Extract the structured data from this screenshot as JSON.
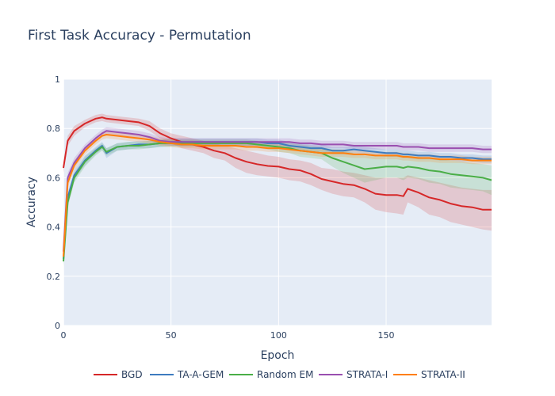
{
  "chart_data": {
    "type": "line",
    "title": "First Task Accuracy - Permutation",
    "xlabel": "Epoch",
    "ylabel": "Accuracy",
    "xlim": [
      0,
      199
    ],
    "ylim": [
      0,
      1
    ],
    "xticks": [
      0,
      50,
      100,
      150
    ],
    "yticks": [
      0,
      0.2,
      0.4,
      0.6,
      0.8,
      1
    ],
    "ytick_labels": [
      "0",
      "0.2",
      "0.4",
      "0.6",
      "0.8",
      "1"
    ],
    "grid": true,
    "legend_position": "bottom",
    "x": [
      0,
      2,
      5,
      10,
      15,
      18,
      20,
      25,
      30,
      35,
      40,
      45,
      50,
      55,
      60,
      65,
      70,
      75,
      80,
      85,
      90,
      95,
      100,
      105,
      110,
      115,
      120,
      125,
      130,
      135,
      140,
      145,
      150,
      155,
      158,
      160,
      165,
      170,
      175,
      180,
      185,
      190,
      195,
      199
    ],
    "series": [
      {
        "name": "BGD",
        "color": "#d62728",
        "values": [
          0.64,
          0.75,
          0.79,
          0.82,
          0.84,
          0.845,
          0.84,
          0.835,
          0.83,
          0.825,
          0.81,
          0.78,
          0.76,
          0.745,
          0.735,
          0.725,
          0.71,
          0.7,
          0.68,
          0.665,
          0.655,
          0.648,
          0.645,
          0.635,
          0.63,
          0.615,
          0.595,
          0.585,
          0.575,
          0.57,
          0.555,
          0.535,
          0.53,
          0.53,
          0.525,
          0.555,
          0.54,
          0.52,
          0.51,
          0.495,
          0.485,
          0.48,
          0.47,
          0.47
        ],
        "upper": [
          0.66,
          0.77,
          0.81,
          0.835,
          0.855,
          0.86,
          0.855,
          0.85,
          0.845,
          0.84,
          0.83,
          0.8,
          0.78,
          0.77,
          0.76,
          0.75,
          0.74,
          0.73,
          0.72,
          0.71,
          0.7,
          0.69,
          0.685,
          0.675,
          0.67,
          0.66,
          0.64,
          0.635,
          0.625,
          0.62,
          0.61,
          0.6,
          0.6,
          0.6,
          0.6,
          0.61,
          0.6,
          0.59,
          0.58,
          0.57,
          0.56,
          0.555,
          0.55,
          0.55
        ],
        "lower": [
          0.62,
          0.73,
          0.77,
          0.805,
          0.825,
          0.83,
          0.825,
          0.82,
          0.815,
          0.81,
          0.79,
          0.76,
          0.74,
          0.72,
          0.71,
          0.7,
          0.68,
          0.67,
          0.64,
          0.62,
          0.61,
          0.605,
          0.6,
          0.59,
          0.585,
          0.57,
          0.55,
          0.535,
          0.525,
          0.52,
          0.5,
          0.47,
          0.46,
          0.455,
          0.45,
          0.5,
          0.48,
          0.45,
          0.44,
          0.42,
          0.41,
          0.4,
          0.39,
          0.385
        ]
      },
      {
        "name": "TA-A-GEM",
        "color": "#3d7bbf",
        "values": [
          0.27,
          0.52,
          0.61,
          0.67,
          0.71,
          0.73,
          0.7,
          0.725,
          0.73,
          0.735,
          0.735,
          0.74,
          0.745,
          0.745,
          0.745,
          0.745,
          0.745,
          0.745,
          0.745,
          0.745,
          0.745,
          0.74,
          0.74,
          0.73,
          0.725,
          0.72,
          0.72,
          0.71,
          0.71,
          0.715,
          0.71,
          0.705,
          0.7,
          0.7,
          0.695,
          0.695,
          0.69,
          0.69,
          0.685,
          0.685,
          0.68,
          0.68,
          0.675,
          0.675
        ],
        "upper": [
          0.29,
          0.54,
          0.63,
          0.69,
          0.725,
          0.745,
          0.72,
          0.74,
          0.745,
          0.75,
          0.75,
          0.755,
          0.76,
          0.76,
          0.76,
          0.76,
          0.76,
          0.76,
          0.76,
          0.76,
          0.76,
          0.755,
          0.755,
          0.745,
          0.74,
          0.735,
          0.735,
          0.725,
          0.725,
          0.73,
          0.725,
          0.72,
          0.715,
          0.715,
          0.71,
          0.71,
          0.705,
          0.705,
          0.7,
          0.7,
          0.695,
          0.695,
          0.69,
          0.69
        ],
        "lower": [
          0.25,
          0.5,
          0.59,
          0.65,
          0.695,
          0.715,
          0.68,
          0.71,
          0.715,
          0.72,
          0.72,
          0.725,
          0.73,
          0.73,
          0.73,
          0.73,
          0.73,
          0.73,
          0.73,
          0.73,
          0.73,
          0.725,
          0.725,
          0.715,
          0.71,
          0.705,
          0.705,
          0.695,
          0.695,
          0.7,
          0.695,
          0.69,
          0.685,
          0.685,
          0.68,
          0.68,
          0.675,
          0.675,
          0.67,
          0.67,
          0.665,
          0.665,
          0.66,
          0.66
        ]
      },
      {
        "name": "Random EM",
        "color": "#4aae47",
        "values": [
          0.26,
          0.5,
          0.6,
          0.665,
          0.705,
          0.725,
          0.705,
          0.725,
          0.73,
          0.73,
          0.735,
          0.74,
          0.74,
          0.74,
          0.74,
          0.74,
          0.74,
          0.74,
          0.74,
          0.74,
          0.735,
          0.73,
          0.725,
          0.72,
          0.71,
          0.705,
          0.7,
          0.68,
          0.665,
          0.65,
          0.635,
          0.64,
          0.645,
          0.645,
          0.64,
          0.645,
          0.64,
          0.63,
          0.625,
          0.615,
          0.61,
          0.605,
          0.6,
          0.59
        ],
        "upper": [
          0.28,
          0.52,
          0.62,
          0.685,
          0.72,
          0.74,
          0.72,
          0.74,
          0.745,
          0.745,
          0.75,
          0.755,
          0.755,
          0.755,
          0.755,
          0.755,
          0.755,
          0.755,
          0.755,
          0.755,
          0.75,
          0.745,
          0.745,
          0.74,
          0.735,
          0.73,
          0.725,
          0.715,
          0.71,
          0.7,
          0.69,
          0.69,
          0.69,
          0.69,
          0.69,
          0.69,
          0.685,
          0.68,
          0.675,
          0.67,
          0.665,
          0.66,
          0.655,
          0.65
        ],
        "lower": [
          0.24,
          0.48,
          0.58,
          0.645,
          0.69,
          0.71,
          0.69,
          0.71,
          0.715,
          0.715,
          0.72,
          0.725,
          0.725,
          0.725,
          0.725,
          0.725,
          0.725,
          0.725,
          0.725,
          0.725,
          0.72,
          0.715,
          0.705,
          0.7,
          0.685,
          0.68,
          0.675,
          0.645,
          0.62,
          0.6,
          0.58,
          0.59,
          0.6,
          0.6,
          0.59,
          0.6,
          0.595,
          0.58,
          0.575,
          0.56,
          0.555,
          0.55,
          0.545,
          0.53
        ]
      },
      {
        "name": "STRATA-I",
        "color": "#9a4fb0",
        "values": [
          0.3,
          0.6,
          0.66,
          0.72,
          0.76,
          0.78,
          0.79,
          0.785,
          0.78,
          0.775,
          0.765,
          0.75,
          0.745,
          0.745,
          0.745,
          0.745,
          0.745,
          0.745,
          0.745,
          0.745,
          0.745,
          0.745,
          0.745,
          0.745,
          0.74,
          0.74,
          0.735,
          0.735,
          0.735,
          0.73,
          0.73,
          0.73,
          0.73,
          0.73,
          0.725,
          0.725,
          0.725,
          0.72,
          0.72,
          0.72,
          0.72,
          0.72,
          0.715,
          0.715
        ],
        "upper": [
          0.32,
          0.62,
          0.68,
          0.735,
          0.775,
          0.795,
          0.805,
          0.8,
          0.795,
          0.79,
          0.78,
          0.765,
          0.76,
          0.76,
          0.76,
          0.76,
          0.76,
          0.76,
          0.76,
          0.76,
          0.76,
          0.76,
          0.76,
          0.76,
          0.755,
          0.755,
          0.75,
          0.75,
          0.75,
          0.745,
          0.745,
          0.745,
          0.745,
          0.745,
          0.74,
          0.74,
          0.74,
          0.735,
          0.735,
          0.735,
          0.735,
          0.735,
          0.73,
          0.73
        ],
        "lower": [
          0.28,
          0.58,
          0.64,
          0.705,
          0.745,
          0.765,
          0.775,
          0.77,
          0.765,
          0.76,
          0.75,
          0.735,
          0.73,
          0.73,
          0.73,
          0.73,
          0.73,
          0.73,
          0.73,
          0.73,
          0.73,
          0.73,
          0.73,
          0.73,
          0.725,
          0.725,
          0.72,
          0.72,
          0.72,
          0.715,
          0.715,
          0.715,
          0.715,
          0.715,
          0.71,
          0.71,
          0.71,
          0.705,
          0.705,
          0.705,
          0.705,
          0.705,
          0.7,
          0.7
        ]
      },
      {
        "name": "STRATA-II",
        "color": "#ff7f0e",
        "values": [
          0.28,
          0.58,
          0.65,
          0.71,
          0.75,
          0.77,
          0.775,
          0.77,
          0.765,
          0.76,
          0.755,
          0.745,
          0.74,
          0.735,
          0.735,
          0.73,
          0.73,
          0.73,
          0.73,
          0.725,
          0.725,
          0.72,
          0.72,
          0.715,
          0.71,
          0.705,
          0.7,
          0.7,
          0.7,
          0.695,
          0.695,
          0.69,
          0.69,
          0.69,
          0.685,
          0.685,
          0.68,
          0.68,
          0.675,
          0.675,
          0.675,
          0.67,
          0.67,
          0.67
        ],
        "upper": [
          0.3,
          0.6,
          0.67,
          0.725,
          0.765,
          0.785,
          0.79,
          0.785,
          0.78,
          0.775,
          0.77,
          0.76,
          0.755,
          0.75,
          0.75,
          0.745,
          0.745,
          0.745,
          0.745,
          0.74,
          0.74,
          0.735,
          0.735,
          0.73,
          0.725,
          0.72,
          0.715,
          0.715,
          0.715,
          0.71,
          0.71,
          0.705,
          0.705,
          0.705,
          0.7,
          0.7,
          0.695,
          0.695,
          0.69,
          0.69,
          0.69,
          0.685,
          0.685,
          0.685
        ],
        "lower": [
          0.26,
          0.56,
          0.63,
          0.695,
          0.735,
          0.755,
          0.76,
          0.755,
          0.75,
          0.745,
          0.74,
          0.73,
          0.725,
          0.72,
          0.72,
          0.715,
          0.715,
          0.715,
          0.715,
          0.71,
          0.71,
          0.705,
          0.705,
          0.7,
          0.695,
          0.69,
          0.685,
          0.685,
          0.685,
          0.68,
          0.68,
          0.675,
          0.675,
          0.675,
          0.67,
          0.67,
          0.665,
          0.665,
          0.66,
          0.66,
          0.66,
          0.655,
          0.655,
          0.655
        ]
      }
    ]
  }
}
